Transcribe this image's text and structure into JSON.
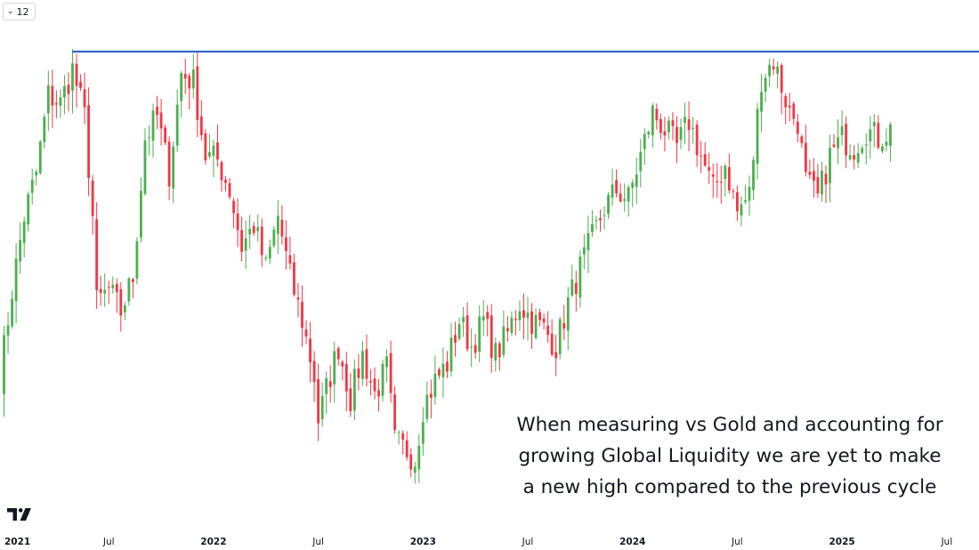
{
  "toolbar": {
    "interval_label": "12",
    "interval_icon": "chevron-down-icon"
  },
  "annotation": {
    "lines": [
      "When measuring vs Gold and accounting for",
      "growing Global Liquidity we are yet to make",
      "a new high compared to the previous cycle"
    ]
  },
  "logo": {
    "icon": "tradingview-logo-icon"
  },
  "chart_data": {
    "type": "candlestick",
    "title": "",
    "xlabel": "",
    "ylabel": "",
    "y_axis_visible": false,
    "grid": false,
    "legend": "none",
    "x_ticks": [
      {
        "label": "2021",
        "t": 0,
        "bold": true
      },
      {
        "label": "Jul",
        "t": 26,
        "bold": false
      },
      {
        "label": "2022",
        "t": 52,
        "bold": true
      },
      {
        "label": "Jul",
        "t": 78,
        "bold": false
      },
      {
        "label": "2023",
        "t": 104,
        "bold": true
      },
      {
        "label": "Jul",
        "t": 130,
        "bold": false
      },
      {
        "label": "2024",
        "t": 156,
        "bold": true
      },
      {
        "label": "Jul",
        "t": 182,
        "bold": false
      },
      {
        "label": "2025",
        "t": 208,
        "bold": true
      },
      {
        "label": "Jul",
        "t": 234,
        "bold": false
      }
    ],
    "x_range": [
      -1,
      242
    ],
    "y_range": [
      0,
      100
    ],
    "horizontal_line": {
      "value": 100,
      "from_t": 17,
      "color": "#2962ff"
    },
    "colors": {
      "up": "#4caf50",
      "down": "#f23645",
      "hline": "#3366cc"
    },
    "anchors": [
      [
        -1,
        25
      ],
      [
        2,
        45
      ],
      [
        5,
        62
      ],
      [
        8,
        72
      ],
      [
        11,
        90
      ],
      [
        14,
        88
      ],
      [
        17,
        96
      ],
      [
        20,
        85
      ],
      [
        22,
        62
      ],
      [
        23,
        42
      ],
      [
        26,
        45
      ],
      [
        29,
        40
      ],
      [
        32,
        48
      ],
      [
        35,
        80
      ],
      [
        38,
        85
      ],
      [
        41,
        72
      ],
      [
        44,
        95
      ],
      [
        47,
        93
      ],
      [
        50,
        76
      ],
      [
        53,
        75
      ],
      [
        56,
        68
      ],
      [
        59,
        55
      ],
      [
        62,
        60
      ],
      [
        65,
        50
      ],
      [
        68,
        62
      ],
      [
        71,
        48
      ],
      [
        74,
        38
      ],
      [
        77,
        25
      ],
      [
        78,
        15
      ],
      [
        80,
        22
      ],
      [
        83,
        32
      ],
      [
        86,
        20
      ],
      [
        89,
        30
      ],
      [
        92,
        21
      ],
      [
        95,
        27
      ],
      [
        97,
        10
      ],
      [
        100,
        8
      ],
      [
        102,
        6
      ],
      [
        104,
        18
      ],
      [
        107,
        24
      ],
      [
        110,
        28
      ],
      [
        113,
        38
      ],
      [
        116,
        32
      ],
      [
        119,
        38
      ],
      [
        122,
        30
      ],
      [
        125,
        35
      ],
      [
        128,
        42
      ],
      [
        131,
        38
      ],
      [
        134,
        36
      ],
      [
        137,
        32
      ],
      [
        140,
        42
      ],
      [
        143,
        50
      ],
      [
        146,
        57
      ],
      [
        149,
        64
      ],
      [
        152,
        68
      ],
      [
        155,
        66
      ],
      [
        158,
        76
      ],
      [
        161,
        86
      ],
      [
        164,
        82
      ],
      [
        167,
        78
      ],
      [
        170,
        84
      ],
      [
        173,
        76
      ],
      [
        176,
        68
      ],
      [
        179,
        74
      ],
      [
        182,
        63
      ],
      [
        185,
        67
      ],
      [
        188,
        94
      ],
      [
        191,
        98
      ],
      [
        193,
        92
      ],
      [
        195,
        86
      ],
      [
        197,
        84
      ],
      [
        199,
        70
      ],
      [
        202,
        66
      ],
      [
        205,
        76
      ],
      [
        208,
        80
      ],
      [
        211,
        78
      ],
      [
        214,
        82
      ],
      [
        217,
        80
      ],
      [
        220,
        82
      ]
    ]
  }
}
